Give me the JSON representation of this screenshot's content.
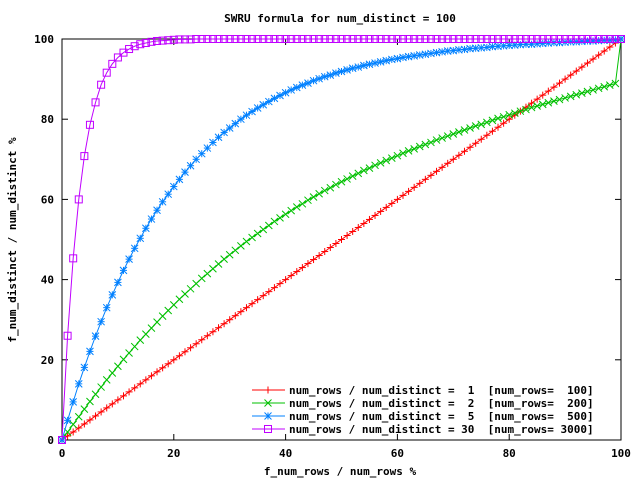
{
  "chart_data": {
    "type": "line",
    "title": "SWRU formula for num_distinct = 100",
    "xlabel": "f_num_rows / num_rows %",
    "ylabel": "f_num_distinct / num_distinct %",
    "xlim": [
      0,
      100
    ],
    "ylim": [
      0,
      100
    ],
    "x_ticks": [
      0,
      20,
      40,
      60,
      80,
      100
    ],
    "y_ticks": [
      0,
      20,
      40,
      60,
      80,
      100
    ],
    "legend_position": "bottom-right",
    "grid": false,
    "series": [
      {
        "name": "num_rows / num_distinct =  1  [num_rows=  100]",
        "color": "#ff0000",
        "marker": "plus",
        "x": [
          0,
          1,
          2,
          3,
          4,
          5,
          6,
          7,
          8,
          9,
          10,
          11,
          12,
          13,
          14,
          15,
          16,
          17,
          18,
          19,
          20,
          21,
          22,
          23,
          24,
          25,
          26,
          27,
          28,
          29,
          30,
          31,
          32,
          33,
          34,
          35,
          36,
          37,
          38,
          39,
          40,
          41,
          42,
          43,
          44,
          45,
          46,
          47,
          48,
          49,
          50,
          51,
          52,
          53,
          54,
          55,
          56,
          57,
          58,
          59,
          60,
          61,
          62,
          63,
          64,
          65,
          66,
          67,
          68,
          69,
          70,
          71,
          72,
          73,
          74,
          75,
          76,
          77,
          78,
          79,
          80,
          81,
          82,
          83,
          84,
          85,
          86,
          87,
          88,
          89,
          90,
          91,
          92,
          93,
          94,
          95,
          96,
          97,
          98,
          99,
          100
        ],
        "y": [
          0,
          1,
          2,
          3,
          4,
          5,
          6,
          7,
          8,
          9,
          10,
          11,
          12,
          13,
          14,
          15,
          16,
          17,
          18,
          19,
          20,
          21,
          22,
          23,
          24,
          25,
          26,
          27,
          28,
          29,
          30,
          31,
          32,
          33,
          34,
          35,
          36,
          37,
          38,
          39,
          40,
          41,
          42,
          43,
          44,
          45,
          46,
          47,
          48,
          49,
          50,
          51,
          52,
          53,
          54,
          55,
          56,
          57,
          58,
          59,
          60,
          61,
          62,
          63,
          64,
          65,
          66,
          67,
          68,
          69,
          70,
          71,
          72,
          73,
          74,
          75,
          76,
          77,
          78,
          79,
          80,
          81,
          82,
          83,
          84,
          85,
          86,
          87,
          88,
          89,
          90,
          91,
          92,
          93,
          94,
          95,
          96,
          97,
          98,
          99,
          100
        ]
      },
      {
        "name": "num_rows / num_distinct =  2  [num_rows=  200]",
        "color": "#00c000",
        "marker": "cross",
        "x": [
          0,
          1,
          2,
          3,
          4,
          5,
          6,
          7,
          8,
          9,
          10,
          11,
          12,
          13,
          14,
          15,
          16,
          17,
          18,
          19,
          20,
          21,
          22,
          23,
          24,
          25,
          26,
          27,
          28,
          29,
          30,
          31,
          32,
          33,
          34,
          35,
          36,
          37,
          38,
          39,
          40,
          41,
          42,
          43,
          44,
          45,
          46,
          47,
          48,
          49,
          50,
          51,
          52,
          53,
          54,
          55,
          56,
          57,
          58,
          59,
          60,
          61,
          62,
          63,
          64,
          65,
          66,
          67,
          68,
          69,
          70,
          71,
          72,
          73,
          74,
          75,
          76,
          77,
          78,
          79,
          80,
          81,
          82,
          83,
          84,
          85,
          86,
          87,
          88,
          89,
          90,
          91,
          92,
          93,
          94,
          95,
          96,
          97,
          98,
          99,
          100
        ],
        "y": [
          0,
          2.0,
          3.9,
          5.8,
          7.7,
          9.6,
          11.4,
          13.2,
          15.0,
          16.7,
          18.4,
          20.1,
          21.7,
          23.3,
          24.9,
          26.4,
          27.9,
          29.4,
          30.9,
          32.3,
          33.7,
          35.1,
          36.4,
          37.7,
          39.0,
          40.3,
          41.5,
          42.7,
          43.9,
          45.1,
          46.2,
          47.3,
          48.4,
          49.5,
          50.5,
          51.5,
          52.5,
          53.5,
          54.5,
          55.4,
          56.3,
          57.2,
          58.1,
          58.9,
          59.8,
          60.6,
          61.4,
          62.2,
          62.9,
          63.7,
          64.4,
          65.1,
          65.8,
          66.5,
          67.2,
          67.8,
          68.5,
          69.1,
          69.7,
          70.3,
          70.9,
          71.5,
          72.1,
          72.6,
          73.2,
          73.7,
          74.2,
          74.8,
          75.3,
          75.8,
          76.3,
          76.8,
          77.3,
          77.8,
          78.3,
          78.7,
          79.2,
          79.7,
          80.2,
          80.6,
          81.1,
          81.5,
          82.0,
          82.4,
          82.9,
          83.3,
          83.7,
          84.1,
          84.5,
          84.9,
          85.3,
          85.7,
          86.1,
          86.5,
          86.9,
          87.3,
          87.7,
          88.1,
          88.5,
          88.9,
          100
        ]
      },
      {
        "name": "num_rows / num_distinct =  5  [num_rows=  500]",
        "color": "#0080ff",
        "marker": "star",
        "x": [
          0,
          1,
          2,
          3,
          4,
          5,
          6,
          7,
          8,
          9,
          10,
          11,
          12,
          13,
          14,
          15,
          16,
          17,
          18,
          19,
          20,
          21,
          22,
          23,
          24,
          25,
          26,
          27,
          28,
          29,
          30,
          31,
          32,
          33,
          34,
          35,
          36,
          37,
          38,
          39,
          40,
          41,
          42,
          43,
          44,
          45,
          46,
          47,
          48,
          49,
          50,
          51,
          52,
          53,
          54,
          55,
          56,
          57,
          58,
          59,
          60,
          61,
          62,
          63,
          64,
          65,
          66,
          67,
          68,
          69,
          70,
          71,
          72,
          73,
          74,
          75,
          76,
          77,
          78,
          79,
          80,
          81,
          82,
          83,
          84,
          85,
          86,
          87,
          88,
          89,
          90,
          91,
          92,
          93,
          94,
          95,
          96,
          97,
          98,
          99,
          100
        ],
        "y": [
          0,
          4.9,
          9.5,
          14.0,
          18.1,
          22.1,
          25.9,
          29.5,
          33.0,
          36.2,
          39.3,
          42.3,
          45.1,
          47.8,
          50.3,
          52.8,
          55.1,
          57.3,
          59.4,
          61.3,
          63.2,
          65.0,
          66.8,
          68.4,
          70.0,
          71.4,
          72.8,
          74.2,
          75.5,
          76.7,
          77.8,
          78.9,
          80.0,
          81.0,
          81.9,
          82.8,
          83.6,
          84.4,
          85.2,
          85.9,
          86.6,
          87.3,
          87.9,
          88.5,
          89.0,
          89.6,
          90.1,
          90.6,
          91.0,
          91.5,
          91.9,
          92.3,
          92.7,
          93.0,
          93.4,
          93.7,
          94.0,
          94.3,
          94.6,
          94.9,
          95.1,
          95.4,
          95.6,
          95.8,
          96.0,
          96.2,
          96.4,
          96.6,
          96.8,
          97.0,
          97.1,
          97.3,
          97.4,
          97.6,
          97.7,
          97.8,
          97.9,
          98.1,
          98.2,
          98.3,
          98.4,
          98.5,
          98.6,
          98.7,
          98.7,
          98.8,
          98.9,
          99.0,
          99.1,
          99.1,
          99.2,
          99.3,
          99.3,
          99.4,
          99.5,
          99.5,
          99.6,
          99.7,
          99.7,
          99.8,
          100
        ]
      },
      {
        "name": "num_rows / num_distinct = 30  [num_rows= 3000]",
        "color": "#c000ff",
        "marker": "square",
        "x": [
          0,
          1,
          2,
          3,
          4,
          5,
          6,
          7,
          8,
          9,
          10,
          11,
          12,
          13,
          14,
          15,
          16,
          17,
          18,
          19,
          20,
          21,
          22,
          23,
          24,
          25,
          26,
          27,
          28,
          29,
          30,
          31,
          32,
          33,
          34,
          35,
          36,
          37,
          38,
          39,
          40,
          41,
          42,
          43,
          44,
          45,
          46,
          47,
          48,
          49,
          50,
          51,
          52,
          53,
          54,
          55,
          56,
          57,
          58,
          59,
          60,
          61,
          62,
          63,
          64,
          65,
          66,
          67,
          68,
          69,
          70,
          71,
          72,
          73,
          74,
          75,
          76,
          77,
          78,
          79,
          80,
          81,
          82,
          83,
          84,
          85,
          86,
          87,
          88,
          89,
          90,
          91,
          92,
          93,
          94,
          95,
          96,
          97,
          98,
          99,
          100
        ],
        "y": [
          0,
          26.0,
          45.3,
          60.0,
          70.8,
          78.6,
          84.2,
          88.6,
          91.6,
          93.8,
          95.4,
          96.6,
          97.5,
          98.2,
          98.7,
          99.0,
          99.3,
          99.5,
          99.6,
          99.7,
          99.8,
          99.9,
          99.9,
          99.9,
          100,
          100,
          100,
          100,
          100,
          100,
          100,
          100,
          100,
          100,
          100,
          100,
          100,
          100,
          100,
          100,
          100,
          100,
          100,
          100,
          100,
          100,
          100,
          100,
          100,
          100,
          100,
          100,
          100,
          100,
          100,
          100,
          100,
          100,
          100,
          100,
          100,
          100,
          100,
          100,
          100,
          100,
          100,
          100,
          100,
          100,
          100,
          100,
          100,
          100,
          100,
          100,
          100,
          100,
          100,
          100,
          100,
          100,
          100,
          100,
          100,
          100,
          100,
          100,
          100,
          100,
          100,
          100,
          100,
          100,
          100,
          100,
          100,
          100,
          100,
          100,
          100
        ]
      }
    ]
  }
}
